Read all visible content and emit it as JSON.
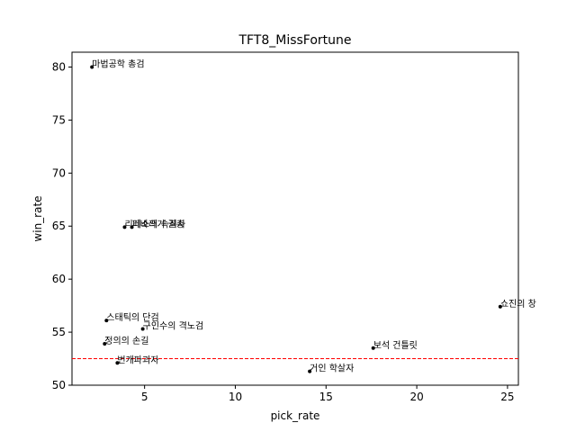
{
  "chart_data": {
    "type": "scatter",
    "title": "TFT8_MissFortune",
    "xlabel": "pick_rate",
    "ylabel": "win_rate",
    "xlim": [
      1.0,
      25.6
    ],
    "ylim": [
      50.0,
      81.4
    ],
    "xticks": [
      5,
      10,
      15,
      20,
      25
    ],
    "yticks": [
      50,
      55,
      60,
      65,
      70,
      75,
      80
    ],
    "grid": false,
    "legend": "none",
    "reference_line": {
      "axis": "y",
      "value": 52.5,
      "style": "dashed",
      "color": "#ff0000"
    },
    "points": [
      {
        "label": "마법공학 총검",
        "x": 2.1,
        "y": 80.0
      },
      {
        "label": "리레소의 속죄자",
        "x": 3.9,
        "y": 64.9
      },
      {
        "label": "피바라기 권총",
        "x": 4.3,
        "y": 64.9
      },
      {
        "label": "스태틱의 단검",
        "x": 2.9,
        "y": 56.1
      },
      {
        "label": "구인수의 격노검",
        "x": 4.9,
        "y": 55.3
      },
      {
        "label": "정의의 손길",
        "x": 2.8,
        "y": 53.9
      },
      {
        "label": "번개파괴자",
        "x": 3.5,
        "y": 52.1
      },
      {
        "label": "보석 건틀릿",
        "x": 17.6,
        "y": 53.5
      },
      {
        "label": "거인 학살자",
        "x": 14.1,
        "y": 51.3
      },
      {
        "label": "쇼진의 창",
        "x": 24.6,
        "y": 57.4
      }
    ]
  },
  "colors": {
    "point": "#000000",
    "reference_line": "#ff0000",
    "axes": "#000000"
  }
}
